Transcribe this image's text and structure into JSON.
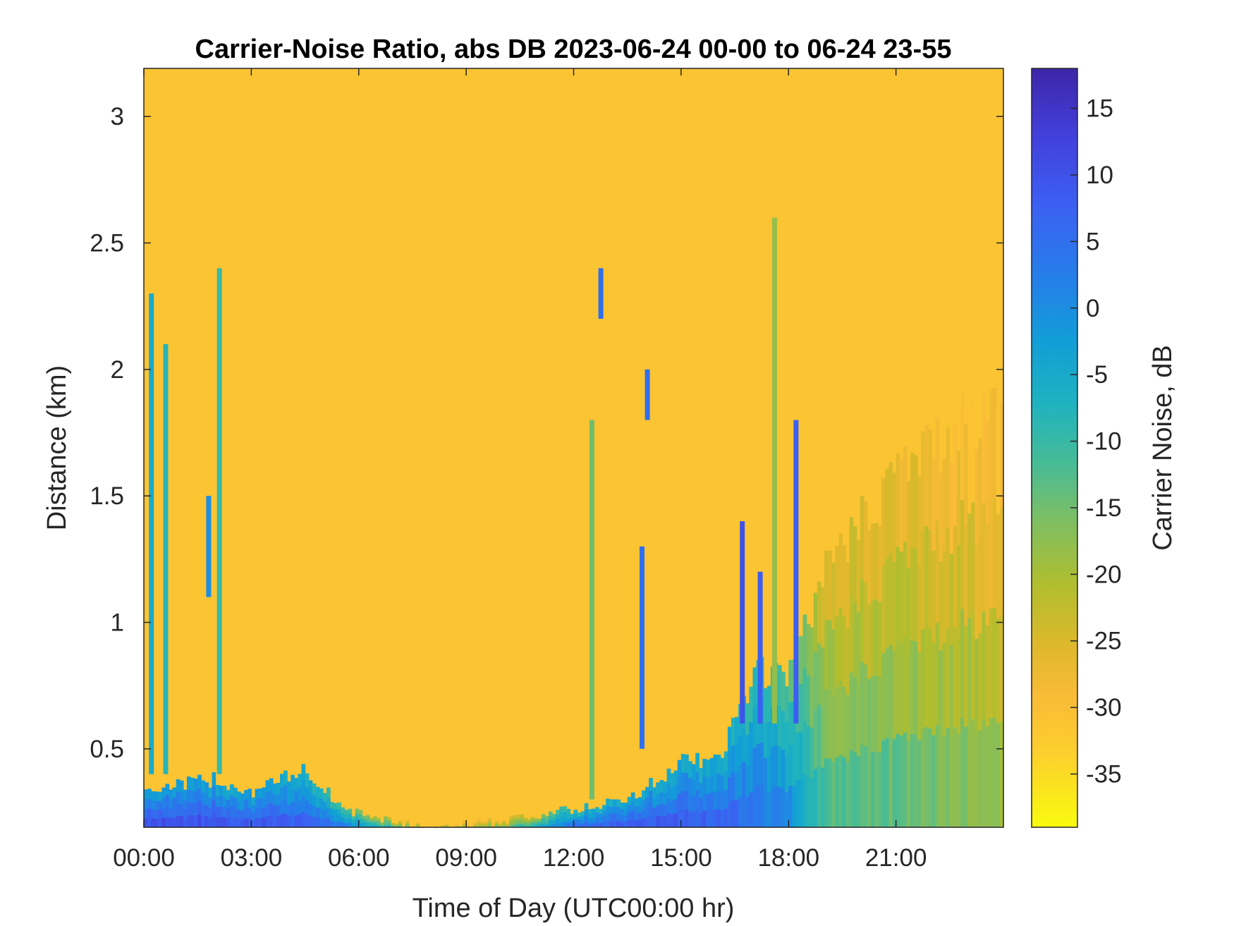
{
  "chart_data": {
    "type": "heatmap",
    "title": "Carrier-Noise Ratio, abs DB 2023-06-24 00-00 to 06-24 23-55",
    "xlabel": "Time of Day (UTC00:00 hr)",
    "ylabel": "Distance (km)",
    "colorbar_label": "Carrier Noise, dB",
    "xlim_hours": [
      0,
      24
    ],
    "ylim_km": [
      0.19,
      3.19
    ],
    "clim_db": [
      -39,
      18
    ],
    "x_ticks": [
      {
        "hour": 0,
        "label": "00:00"
      },
      {
        "hour": 3,
        "label": "03:00"
      },
      {
        "hour": 6,
        "label": "06:00"
      },
      {
        "hour": 9,
        "label": "09:00"
      },
      {
        "hour": 12,
        "label": "12:00"
      },
      {
        "hour": 15,
        "label": "15:00"
      },
      {
        "hour": 18,
        "label": "18:00"
      },
      {
        "hour": 21,
        "label": "21:00"
      }
    ],
    "y_ticks": [
      {
        "km": 0.5,
        "label": "0.5"
      },
      {
        "km": 1,
        "label": "1"
      },
      {
        "km": 1.5,
        "label": "1.5"
      },
      {
        "km": 2,
        "label": "2"
      },
      {
        "km": 2.5,
        "label": "2.5"
      },
      {
        "km": 3,
        "label": "3"
      }
    ],
    "colorbar_ticks": [
      {
        "db": 15,
        "label": "15"
      },
      {
        "db": 10,
        "label": "10"
      },
      {
        "db": 5,
        "label": "5"
      },
      {
        "db": 0,
        "label": "0"
      },
      {
        "db": -5,
        "label": "-5"
      },
      {
        "db": -10,
        "label": "-10"
      },
      {
        "db": -15,
        "label": "-15"
      },
      {
        "db": -20,
        "label": "-20"
      },
      {
        "db": -25,
        "label": "-25"
      },
      {
        "db": -30,
        "label": "-30"
      },
      {
        "db": -35,
        "label": "-35"
      }
    ],
    "colormap": "parula",
    "background_level_db": -31,
    "features": {
      "near_surface_layer": [
        {
          "hour": 0,
          "top_km": 0.34,
          "db": 10
        },
        {
          "hour": 1,
          "top_km": 0.36,
          "db": 10
        },
        {
          "hour": 2,
          "top_km": 0.38,
          "db": 9
        },
        {
          "hour": 3,
          "top_km": 0.33,
          "db": 9
        },
        {
          "hour": 4.5,
          "top_km": 0.42,
          "db": 7
        },
        {
          "hour": 5.5,
          "top_km": 0.26,
          "db": 2
        },
        {
          "hour": 7,
          "top_km": 0.21,
          "db": -10
        },
        {
          "hour": 8,
          "top_km": 0.19,
          "db": -20
        },
        {
          "hour": 10,
          "top_km": 0.22,
          "db": -15
        },
        {
          "hour": 12,
          "top_km": 0.26,
          "db": 5
        },
        {
          "hour": 13.5,
          "top_km": 0.3,
          "db": 8
        },
        {
          "hour": 15,
          "top_km": 0.45,
          "db": 8
        },
        {
          "hour": 16,
          "top_km": 0.45,
          "db": 7
        },
        {
          "hour": 17,
          "top_km": 0.8,
          "db": 4
        },
        {
          "hour": 18,
          "top_km": 0.8,
          "db": 0
        },
        {
          "hour": 19,
          "top_km": 1.2,
          "db": -12
        },
        {
          "hour": 21,
          "top_km": 1.6,
          "db": -14
        },
        {
          "hour": 24,
          "top_km": 1.9,
          "db": -18
        }
      ],
      "vertical_streaks": [
        {
          "hour": 0.2,
          "bottom_km": 0.4,
          "top_km": 2.3,
          "db": -5
        },
        {
          "hour": 0.6,
          "bottom_km": 0.4,
          "top_km": 2.1,
          "db": -8
        },
        {
          "hour": 1.8,
          "bottom_km": 1.1,
          "top_km": 1.5,
          "db": 0
        },
        {
          "hour": 2.1,
          "bottom_km": 0.4,
          "top_km": 2.4,
          "db": -10
        },
        {
          "hour": 12.5,
          "bottom_km": 0.3,
          "top_km": 1.8,
          "db": -15
        },
        {
          "hour": 12.75,
          "bottom_km": 2.2,
          "top_km": 2.4,
          "db": 5
        },
        {
          "hour": 14.05,
          "bottom_km": 1.8,
          "top_km": 2.0,
          "db": 5
        },
        {
          "hour": 13.9,
          "bottom_km": 0.5,
          "top_km": 1.3,
          "db": 5
        },
        {
          "hour": 16.7,
          "bottom_km": 0.6,
          "top_km": 1.4,
          "db": 10
        },
        {
          "hour": 17.2,
          "bottom_km": 0.6,
          "top_km": 1.2,
          "db": 8
        },
        {
          "hour": 17.6,
          "bottom_km": 0.6,
          "top_km": 2.6,
          "db": -18
        },
        {
          "hour": 18.2,
          "bottom_km": 0.6,
          "top_km": 1.8,
          "db": 8
        }
      ]
    }
  }
}
